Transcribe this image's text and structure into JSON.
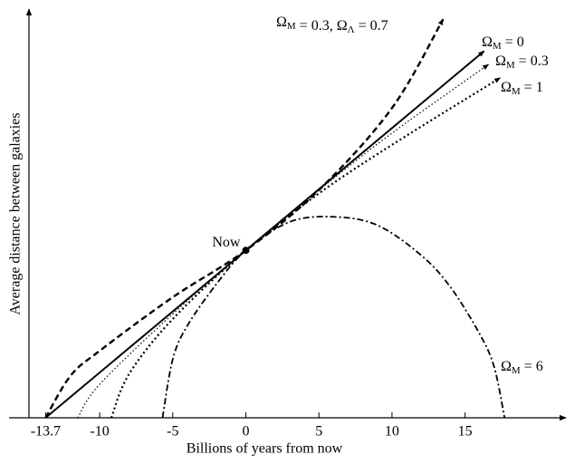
{
  "chart_data": {
    "type": "line",
    "x_label": "Billions of years from now",
    "y_label": "Average distance between galaxies",
    "xlim": [
      -16.2,
      21.9
    ],
    "ylim": [
      0,
      2.43
    ],
    "xticks": [
      -13.7,
      -10,
      -5,
      0,
      5,
      10,
      15
    ],
    "annotations": [
      {
        "text": "Now"
      }
    ],
    "series": [
      {
        "name": "ΩM = 0",
        "color": "#000000",
        "style": "solid",
        "arrow": true,
        "x": [
          -13.7,
          0,
          16.3
        ],
        "values": [
          0,
          1,
          2.19
        ]
      },
      {
        "name": "ΩM = 0.3",
        "color": "#000000",
        "style": "dotted-thin",
        "arrow": true,
        "x": [
          -11.5,
          -10,
          -5,
          0,
          5,
          10,
          16.6
        ],
        "values": [
          0,
          0.2,
          0.62,
          1,
          1.36,
          1.7,
          2.11
        ]
      },
      {
        "name": "ΩM = 1",
        "color": "#000000",
        "style": "dotted",
        "arrow": true,
        "x": [
          -9.2,
          -8,
          -5,
          0,
          5,
          10,
          17.4
        ],
        "values": [
          0,
          0.26,
          0.59,
          1,
          1.34,
          1.63,
          2.03
        ]
      },
      {
        "name": "ΩM = 0.3, ΩΛ = 0.7",
        "color": "#000000",
        "style": "dashed",
        "arrow": true,
        "x": [
          -13.7,
          -12,
          -10,
          -5,
          0,
          5,
          10,
          13.5
        ],
        "values": [
          0,
          0.25,
          0.4,
          0.72,
          1,
          1.36,
          1.85,
          2.38
        ]
      },
      {
        "name": "ΩM = 6",
        "color": "#000000",
        "style": "dashdot",
        "arrow": false,
        "x": [
          -5.7,
          -5,
          -4,
          -2,
          0,
          3,
          6,
          9,
          12,
          14,
          16,
          17,
          17.7
        ],
        "values": [
          0,
          0.35,
          0.55,
          0.8,
          1,
          1.17,
          1.2,
          1.15,
          0.97,
          0.78,
          0.5,
          0.3,
          0
        ]
      }
    ]
  }
}
